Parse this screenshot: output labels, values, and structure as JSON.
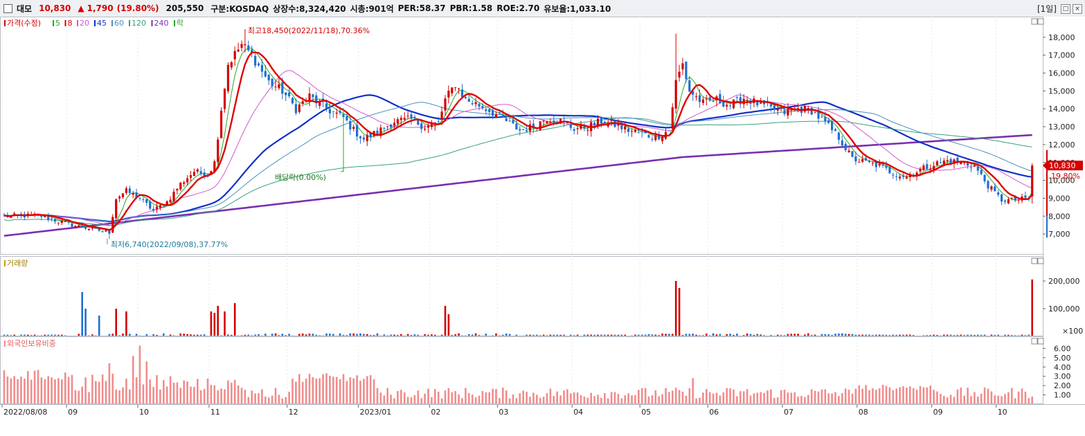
{
  "header": {
    "name": "대모",
    "price": "10,830",
    "change_arrow": "▲",
    "change": "1,790",
    "change_pct": "(19.80%)",
    "volume": "205,550",
    "market": "구분:KOSDAQ",
    "shares": "상장수:8,324,420",
    "mcap": "시총:901억",
    "per": "PER:58.37",
    "pbr": "PBR:1.58",
    "roe": "ROE:2.70",
    "turnover": "유보율:1,033.10",
    "period": "[1일]",
    "btn_max": "□",
    "btn_close": "×"
  },
  "colors": {
    "up": "#d40000",
    "down": "#1f6fd1",
    "ma5": "#2aa52a",
    "ma8": "#e00000",
    "ma20": "#d05ad0",
    "ma45": "#1030c8",
    "ma60": "#4a8fc0",
    "ma120": "#3aa080",
    "ma240": "#7a2fb0",
    "foreign": "#f08c8c"
  },
  "chart_data": [
    {
      "type": "candlestick",
      "title": "가격(수정)",
      "legend": [
        {
          "label": "가격(수정)",
          "color": "#d40000"
        },
        {
          "label": "5",
          "color": "#2aa52a"
        },
        {
          "label": "8",
          "color": "#e00000"
        },
        {
          "label": "20",
          "color": "#d05ad0"
        },
        {
          "label": "45",
          "color": "#1030c8"
        },
        {
          "label": "60",
          "color": "#4a8fc0"
        },
        {
          "label": "120",
          "color": "#3aa080"
        },
        {
          "label": "240",
          "color": "#7a2fb0"
        },
        {
          "label": "락",
          "color": "#2aa52a"
        }
      ],
      "x_ticks": [
        "2022/08/08",
        "09",
        "10",
        "11",
        "12",
        "2023/01",
        "02",
        "03",
        "04",
        "05",
        "06",
        "07",
        "08",
        "09",
        "10"
      ],
      "y_ticks": [
        "7,000",
        "8,000",
        "9,000",
        "10,000",
        "11,000",
        "12,000",
        "13,000",
        "14,000",
        "15,000",
        "16,000",
        "17,000",
        "18,000"
      ],
      "ylim": [
        6000,
        19000
      ],
      "annotations": {
        "high": "최고18,450(2022/11/18),70.36%",
        "low": "최저6,740(2022/09/08),37.77%",
        "dividend": "배당락(0.00%)"
      },
      "last_price_label": "10,830",
      "last_pct_label": "19.80%",
      "keypoints_close": [
        [
          0,
          8000
        ],
        [
          10,
          8050
        ],
        [
          20,
          7500
        ],
        [
          28,
          7200
        ],
        [
          31,
          7100
        ],
        [
          33,
          9000
        ],
        [
          36,
          9400
        ],
        [
          40,
          9000
        ],
        [
          44,
          8300
        ],
        [
          48,
          8800
        ],
        [
          52,
          9800
        ],
        [
          56,
          10500
        ],
        [
          60,
          10300
        ],
        [
          62,
          11000
        ],
        [
          64,
          14000
        ],
        [
          66,
          16500
        ],
        [
          70,
          17600
        ],
        [
          73,
          17000
        ],
        [
          78,
          15500
        ],
        [
          82,
          15000
        ],
        [
          86,
          14000
        ],
        [
          90,
          14700
        ],
        [
          95,
          14000
        ],
        [
          100,
          13500
        ],
        [
          103,
          12800
        ],
        [
          106,
          12300
        ],
        [
          110,
          12700
        ],
        [
          115,
          13300
        ],
        [
          120,
          13400
        ],
        [
          124,
          13000
        ],
        [
          128,
          13200
        ],
        [
          130,
          14500
        ],
        [
          133,
          15400
        ],
        [
          136,
          14500
        ],
        [
          140,
          14200
        ],
        [
          144,
          13800
        ],
        [
          148,
          13300
        ],
        [
          152,
          12800
        ],
        [
          156,
          13000
        ],
        [
          160,
          13500
        ],
        [
          164,
          13300
        ],
        [
          168,
          12900
        ],
        [
          172,
          13000
        ],
        [
          176,
          13300
        ],
        [
          180,
          13100
        ],
        [
          184,
          12800
        ],
        [
          188,
          12600
        ],
        [
          192,
          12400
        ],
        [
          196,
          12800
        ],
        [
          198,
          15500
        ],
        [
          200,
          16500
        ],
        [
          202,
          15000
        ],
        [
          206,
          14300
        ],
        [
          210,
          14500
        ],
        [
          214,
          14200
        ],
        [
          218,
          14600
        ],
        [
          222,
          14300
        ],
        [
          226,
          14000
        ],
        [
          230,
          13800
        ],
        [
          234,
          14000
        ],
        [
          238,
          13900
        ],
        [
          242,
          13200
        ],
        [
          246,
          12400
        ],
        [
          250,
          11200
        ],
        [
          254,
          11000
        ],
        [
          258,
          10800
        ],
        [
          262,
          10400
        ],
        [
          266,
          10200
        ],
        [
          270,
          10600
        ],
        [
          274,
          10900
        ],
        [
          278,
          11100
        ],
        [
          282,
          11000
        ],
        [
          286,
          10800
        ],
        [
          290,
          9700
        ],
        [
          294,
          8900
        ],
        [
          298,
          8900
        ],
        [
          302,
          9000
        ],
        [
          303,
          10830
        ]
      ]
    },
    {
      "type": "bar",
      "title": "거래량",
      "y_ticks": [
        "100,000",
        "200,000"
      ],
      "unit_label": "×100",
      "ylim": [
        0,
        2400
      ]
    },
    {
      "type": "bar",
      "title": "외국인보유비중",
      "y_ticks": [
        "1.00",
        "2.00",
        "3.00",
        "4.00",
        "5.00",
        "6.00"
      ],
      "ylim": [
        0,
        7
      ]
    }
  ]
}
